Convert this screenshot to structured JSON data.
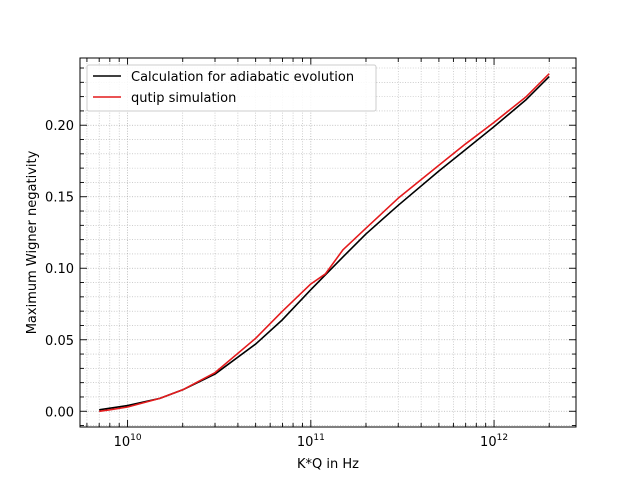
{
  "chart_data": {
    "type": "line",
    "xlabel": "K*Q in Hz",
    "ylabel": "Maximum Wigner negativity",
    "xscale": "log",
    "xlim": [
      5500000000.0,
      2800000000000.0
    ],
    "ylim": [
      -0.011,
      0.247
    ],
    "grid": "major and minor, dotted",
    "legend_position": "top-left",
    "x_tick_labels": [
      {
        "value": 10000000000.0,
        "base": "10",
        "exp": "10"
      },
      {
        "value": 100000000000.0,
        "base": "10",
        "exp": "11"
      },
      {
        "value": 1000000000000.0,
        "base": "10",
        "exp": "12"
      }
    ],
    "y_ticks": [
      0.0,
      0.05,
      0.1,
      0.15,
      0.2
    ],
    "y_tick_labels": [
      "0.00",
      "0.05",
      "0.10",
      "0.15",
      "0.20"
    ],
    "series": [
      {
        "name": "Calculation for adiabatic evolution",
        "color": "#000000",
        "x": [
          7000000000.0,
          10000000000.0,
          15000000000.0,
          20000000000.0,
          30000000000.0,
          50000000000.0,
          70000000000.0,
          100000000000.0,
          150000000000.0,
          200000000000.0,
          300000000000.0,
          500000000000.0,
          700000000000.0,
          1000000000000.0,
          1500000000000.0,
          2000000000000.0
        ],
        "y": [
          0.001,
          0.004,
          0.009,
          0.015,
          0.026,
          0.047,
          0.064,
          0.085,
          0.108,
          0.124,
          0.144,
          0.168,
          0.183,
          0.199,
          0.218,
          0.234
        ]
      },
      {
        "name": "qutip simulation",
        "color": "#e41a1c",
        "x": [
          7000000000.0,
          8000000000.0,
          10000000000.0,
          15000000000.0,
          20000000000.0,
          30000000000.0,
          50000000000.0,
          70000000000.0,
          100000000000.0,
          120000000000.0,
          150000000000.0,
          200000000000.0,
          300000000000.0,
          500000000000.0,
          700000000000.0,
          1000000000000.0,
          1500000000000.0,
          2000000000000.0
        ],
        "y": [
          0.0,
          0.001,
          0.003,
          0.009,
          0.015,
          0.027,
          0.051,
          0.07,
          0.089,
          0.096,
          0.113,
          0.128,
          0.149,
          0.172,
          0.187,
          0.202,
          0.22,
          0.236
        ]
      }
    ]
  }
}
